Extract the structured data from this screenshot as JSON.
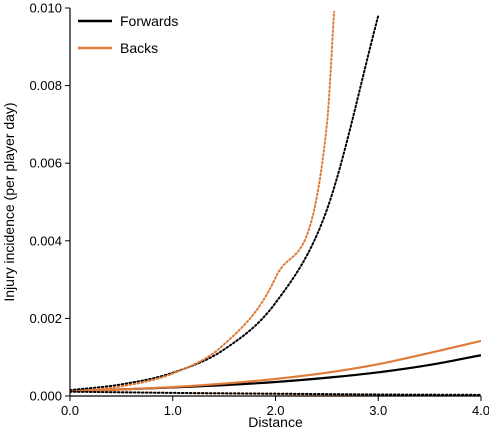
{
  "chart_data": {
    "type": "line",
    "title": "",
    "xlabel": "Distance",
    "ylabel": "Injury incidence (per player day)",
    "xlim": [
      0,
      4
    ],
    "ylim": [
      0,
      0.01
    ],
    "xticks": [
      0,
      1,
      2,
      3,
      4
    ],
    "xtick_labels": [
      "0.0",
      "1.0",
      "2.0",
      "3.0",
      "4.0"
    ],
    "yticks": [
      0,
      0.002,
      0.004,
      0.006,
      0.008,
      0.01
    ],
    "ytick_labels": [
      "0.000",
      "0.002",
      "0.004",
      "0.006",
      "0.008",
      "0.010"
    ],
    "grid": false,
    "legend_position": "top-left",
    "legend": [
      {
        "name": "Forwards",
        "color": "#000000"
      },
      {
        "name": "Backs",
        "color": "#e07b39"
      }
    ],
    "series": [
      {
        "name": "Forwards",
        "color": "#000000",
        "style": "solid",
        "x": [
          0,
          0.5,
          1.0,
          1.5,
          2.0,
          2.5,
          3.0,
          3.5,
          4.0
        ],
        "y": [
          0.00013,
          0.00017,
          0.00022,
          0.00028,
          0.00036,
          0.00047,
          0.00061,
          0.0008,
          0.00105
        ]
      },
      {
        "name": "Backs",
        "color": "#e07b39",
        "style": "solid",
        "x": [
          0,
          0.5,
          1.0,
          1.5,
          2.0,
          2.5,
          3.0,
          3.5,
          4.0
        ],
        "y": [
          0.00012,
          0.00017,
          0.00023,
          0.00032,
          0.00044,
          0.0006,
          0.00082,
          0.00111,
          0.00142
        ]
      },
      {
        "name": "",
        "color": "#000000",
        "style": "dotted",
        "x": [
          0,
          0.5,
          1.0,
          1.5,
          2.0,
          2.5,
          3.0
        ],
        "y": [
          0.00015,
          0.0003,
          0.0006,
          0.0012,
          0.0024,
          0.0048,
          0.0098
        ]
      },
      {
        "name": "",
        "color": "#e07b39",
        "style": "dotted",
        "x": [
          0,
          0.5,
          1.0,
          1.5,
          2.0,
          2.5,
          2.57
        ],
        "y": [
          0.00011,
          0.00025,
          0.00058,
          0.00133,
          0.00305,
          0.007,
          0.0099
        ]
      },
      {
        "name": "",
        "color": "#e07b39",
        "style": "dotted",
        "x": [
          0,
          1.0,
          2.0,
          3.0,
          4.0
        ],
        "y": [
          0.00012,
          8e-05,
          5e-05,
          3e-05,
          2e-05
        ]
      },
      {
        "name": "",
        "color": "#000000",
        "style": "dotted",
        "x": [
          0,
          1.0,
          2.0,
          3.0,
          4.0
        ],
        "y": [
          0.00011,
          8e-05,
          6e-05,
          4e-05,
          3e-05
        ]
      }
    ]
  }
}
